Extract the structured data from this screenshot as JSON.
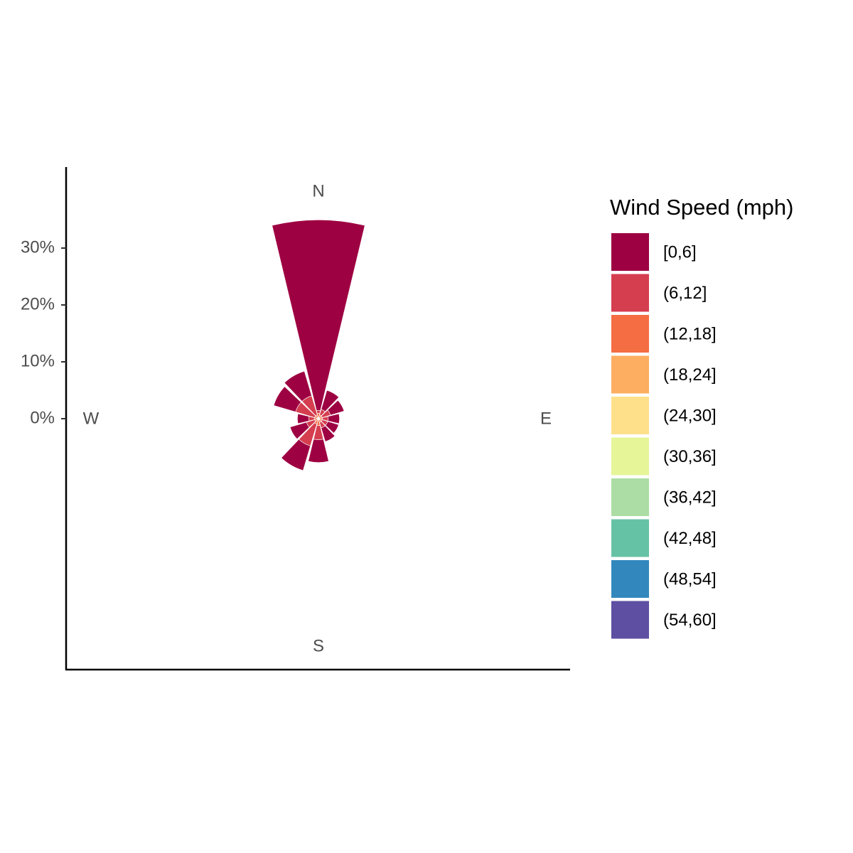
{
  "chart_data": {
    "type": "windrose",
    "legend_title": "Wind Speed (mph)",
    "x": [
      0,
      30,
      60,
      90,
      120,
      150,
      180,
      210,
      240,
      270,
      300,
      330
    ],
    "xlim": [
      0,
      360
    ],
    "xticks": [
      {
        "value": 0,
        "label": "N"
      },
      {
        "value": 90,
        "label": "E"
      },
      {
        "value": 180,
        "label": "S"
      },
      {
        "value": 270,
        "label": "W"
      }
    ],
    "ylim": [
      0,
      44.25
    ],
    "yticks": [
      {
        "value": 0,
        "label": "0%"
      },
      {
        "value": 10,
        "label": "10%"
      },
      {
        "value": 20,
        "label": "20%"
      },
      {
        "value": 30,
        "label": "30%"
      }
    ],
    "series": [
      {
        "name": "[0,6]",
        "color": "#9E0142",
        "values": [
          33.5,
          3.5,
          2.5,
          2,
          2,
          2.5,
          4,
          4.5,
          3,
          2,
          4,
          4.5
        ]
      },
      {
        "name": "(6,12]",
        "color": "#D53E4F",
        "values": [
          0.5,
          1,
          1.5,
          1,
          1,
          1,
          2.5,
          4,
          1.5,
          1,
          3.5,
          3.5
        ]
      },
      {
        "name": "(12,18]",
        "color": "#F46D43",
        "values": [
          0.75,
          0.5,
          0.5,
          0.5,
          0.5,
          0.5,
          1,
          0.8,
          0.5,
          0.5,
          0.5,
          0.5
        ]
      },
      {
        "name": "(18,24]",
        "color": "#FDAE61",
        "values": [
          0.2,
          0.2,
          0.2,
          0.2,
          0.2,
          0.2,
          0.2,
          0.2,
          0.2,
          0.2,
          0.2,
          0.2
        ]
      },
      {
        "name": "(24,30]",
        "color": "#FEE08B",
        "values": [
          0,
          0,
          0,
          0,
          0,
          0,
          0,
          0,
          0,
          0,
          0,
          0
        ]
      },
      {
        "name": "(30,36]",
        "color": "#E6F598",
        "values": [
          0,
          0,
          0,
          0,
          0,
          0,
          0,
          0,
          0,
          0,
          0,
          0
        ]
      },
      {
        "name": "(36,42]",
        "color": "#ABDDA4",
        "values": [
          0,
          0,
          0,
          0,
          0,
          0,
          0,
          0,
          0,
          0,
          0,
          0
        ]
      },
      {
        "name": "(42,48]",
        "color": "#66C2A5",
        "values": [
          0,
          0,
          0,
          0,
          0,
          0,
          0,
          0,
          0,
          0,
          0,
          0
        ]
      },
      {
        "name": "(48,54]",
        "color": "#3288BD",
        "values": [
          0,
          0,
          0,
          0,
          0,
          0,
          0,
          0,
          0,
          0,
          0,
          0
        ]
      },
      {
        "name": "(54,60]",
        "color": "#5E4FA2",
        "values": [
          0,
          0,
          0,
          0,
          0,
          0,
          0,
          0,
          0,
          0,
          0,
          0
        ]
      }
    ]
  }
}
